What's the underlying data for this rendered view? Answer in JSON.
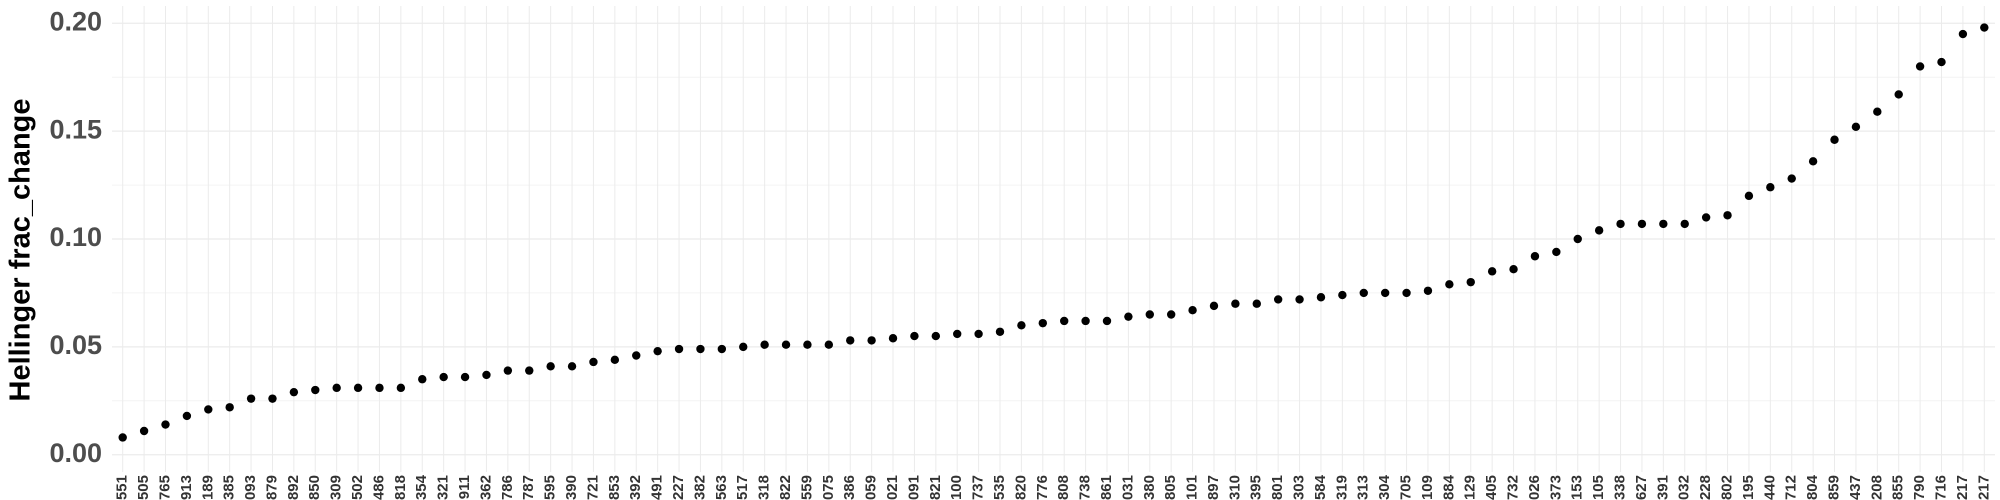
{
  "chart_data": {
    "type": "scatter",
    "y_label": "Hellinger frac_change",
    "categories": [
      "551",
      "505",
      "765",
      "913",
      "189",
      "385",
      "093",
      "879",
      "892",
      "850",
      "309",
      "502",
      "486",
      "818",
      "354",
      "321",
      "911",
      "362",
      "786",
      "787",
      "595",
      "390",
      "721",
      "853",
      "392",
      "491",
      "227",
      "382",
      "563",
      "517",
      "318",
      "822",
      "559",
      "075",
      "386",
      "059",
      "021",
      "091",
      "821",
      "100",
      "737",
      "535",
      "820",
      "776",
      "808",
      "738",
      "861",
      "031",
      "380",
      "805",
      "101",
      "897",
      "310",
      "395",
      "801",
      "303",
      "584",
      "319",
      "313",
      "304",
      "705",
      "109",
      "884",
      "129",
      "405",
      "732",
      "026",
      "373",
      "153",
      "105",
      "338",
      "627",
      "391",
      "032",
      "228",
      "802",
      "195",
      "440",
      "712",
      "804",
      "859",
      "437",
      "208",
      "855",
      "790",
      "716",
      "217",
      "217"
    ],
    "values": [
      0.008,
      0.011,
      0.014,
      0.018,
      0.021,
      0.022,
      0.026,
      0.026,
      0.029,
      0.03,
      0.031,
      0.031,
      0.031,
      0.031,
      0.035,
      0.036,
      0.036,
      0.037,
      0.039,
      0.039,
      0.041,
      0.041,
      0.043,
      0.044,
      0.046,
      0.048,
      0.049,
      0.049,
      0.049,
      0.05,
      0.051,
      0.051,
      0.051,
      0.051,
      0.053,
      0.053,
      0.054,
      0.055,
      0.055,
      0.056,
      0.056,
      0.057,
      0.06,
      0.061,
      0.062,
      0.062,
      0.062,
      0.064,
      0.065,
      0.065,
      0.067,
      0.069,
      0.07,
      0.07,
      0.072,
      0.072,
      0.073,
      0.074,
      0.075,
      0.075,
      0.075,
      0.076,
      0.079,
      0.08,
      0.085,
      0.086,
      0.092,
      0.094,
      0.1,
      0.104,
      0.107,
      0.107,
      0.107,
      0.107,
      0.11,
      0.111,
      0.12,
      0.124,
      0.128,
      0.136,
      0.146,
      0.152,
      0.159,
      0.167,
      0.18,
      0.182,
      0.195,
      0.198
    ],
    "color": "#000000",
    "ylim": [
      -0.008,
      0.208
    ],
    "yticks": [
      {
        "value": 0,
        "label": "0.00"
      },
      {
        "value": 0.05,
        "label": "0.05"
      },
      {
        "value": 0.1,
        "label": "0.10"
      },
      {
        "value": 0.15,
        "label": "0.15"
      },
      {
        "value": 0.2,
        "label": "0.20"
      }
    ],
    "grid": true,
    "minor_grid": true
  }
}
